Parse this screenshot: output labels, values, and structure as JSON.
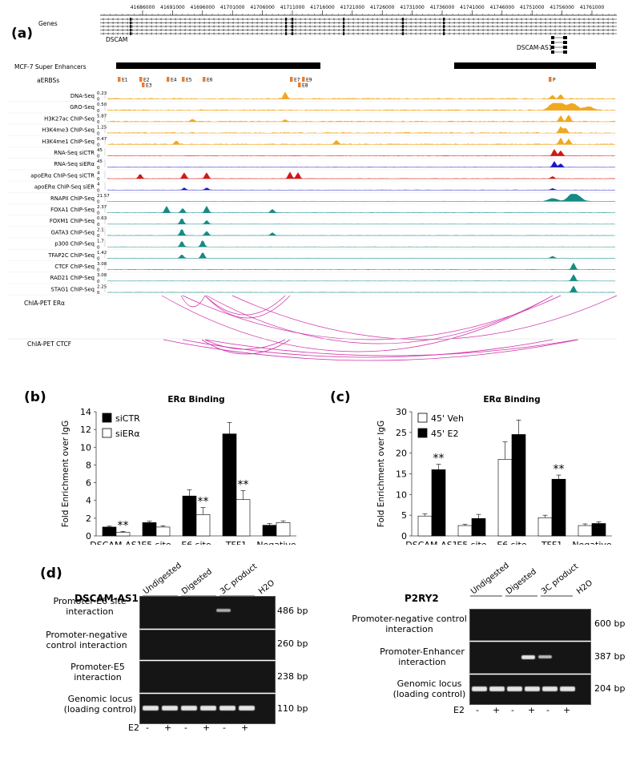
{
  "panel_a": {
    "letter": "(a)",
    "coord_ticks": [
      "41686000",
      "41691000",
      "41696000",
      "41701000",
      "41706000",
      "41711000",
      "41716000",
      "41721000",
      "41726000",
      "41731000",
      "41736000",
      "41741000",
      "41746000",
      "41751000",
      "41756000",
      "41761000"
    ],
    "tracks_header": "Genes",
    "gene_dscam": "DSCAM",
    "gene_dscam_as1": "DSCAM-AS1",
    "super_enhancers_label": "MCF-7 Super Enhancers",
    "aerbs_label": "aERBSs",
    "aerbs_sites": [
      "E1",
      "E2",
      "E3",
      "E4",
      "E5",
      "E6",
      "E7",
      "E8",
      "E9",
      "P"
    ],
    "signal_tracks": [
      {
        "name": "DNA-Seq",
        "max": "0.23",
        "min": "0",
        "color": "#f0a820"
      },
      {
        "name": "GRO-Seq",
        "max": "0.50",
        "min": "0",
        "color": "#f0a820"
      },
      {
        "name": "H3K27ac ChIP-Seq",
        "max": "5.87",
        "min": "0",
        "color": "#f0a820"
      },
      {
        "name": "H3K4me3 ChIP-Seq",
        "max": "1.25",
        "min": "0",
        "color": "#f0a820"
      },
      {
        "name": "H3K4me1 ChIP-Seq",
        "max": "0.47",
        "min": "0",
        "color": "#f0a820"
      },
      {
        "name": "RNA-Seq siCTR",
        "max": "45",
        "min": "0",
        "color": "#d01818"
      },
      {
        "name": "RNA-Seq siERα",
        "max": "45",
        "min": "0",
        "color": "#1818c8"
      },
      {
        "name": "apoERα ChIP-Seq siCTR",
        "max": "4",
        "min": "0",
        "color": "#d01818"
      },
      {
        "name": "apoERα ChIP-Seq siER",
        "max": "4",
        "min": "0",
        "color": "#1818c8"
      },
      {
        "name": "RNAPII ChIP-Seq",
        "max": "21.57",
        "min": "0",
        "color": "#168a84"
      },
      {
        "name": "FOXA1 ChIP-Seq",
        "max": "2.37",
        "min": "0",
        "color": "#168a84"
      },
      {
        "name": "FOXM1 ChIP-Seq",
        "max": "0.63",
        "min": "0",
        "color": "#168a84"
      },
      {
        "name": "GATA3 ChIP-Seq",
        "max": "2.1",
        "min": "0",
        "color": "#168a84"
      },
      {
        "name": "p300 ChIP-Seq",
        "max": "1.7",
        "min": "0",
        "color": "#168a84"
      },
      {
        "name": "TFAP2C ChIP-Seq",
        "max": "1.42",
        "min": "0",
        "color": "#168a84"
      },
      {
        "name": "CTCF ChIP-Seq",
        "max": "3.08",
        "min": "0",
        "color": "#168a84"
      },
      {
        "name": "RAD21 ChIP-Seq",
        "max": "3.08",
        "min": "0",
        "color": "#168a84"
      },
      {
        "name": "STAG1 ChIP-Seq",
        "max": "2.25",
        "min": "0",
        "color": "#168a84"
      }
    ],
    "chiapet_era_label": "ChIA-PET ERα",
    "chiapet_ctcf_label": "ChIA-PET CTCF"
  },
  "chart_data": [
    {
      "panel": "(b)",
      "type": "bar",
      "title": "ERα Binding",
      "ylabel": "Fold Enrichment over IgG",
      "ylim": [
        0,
        14
      ],
      "yticks": [
        "0",
        "2",
        "4",
        "6",
        "8",
        "10",
        "12",
        "14"
      ],
      "categories": [
        [
          "DSCAM-AS1",
          "promoter"
        ],
        [
          "E5 site"
        ],
        [
          "E6 site"
        ],
        [
          "TFF1",
          "promoter"
        ],
        [
          "Negative",
          "Control"
        ]
      ],
      "series": [
        {
          "name": "siCTR",
          "fill": "#000000",
          "values": [
            1.0,
            1.5,
            4.5,
            11.5,
            1.2
          ],
          "errors": [
            0.1,
            0.15,
            0.7,
            1.3,
            0.2
          ]
        },
        {
          "name": "siERα",
          "fill": "#ffffff",
          "values": [
            0.4,
            1.0,
            2.4,
            4.1,
            1.5
          ],
          "errors": [
            0.1,
            0.15,
            0.8,
            1.0,
            0.2
          ]
        }
      ],
      "significance": [
        {
          "category": 0,
          "label": "**"
        },
        {
          "category": 2,
          "label": "**"
        },
        {
          "category": 3,
          "label": "**"
        }
      ]
    },
    {
      "panel": "(c)",
      "type": "bar",
      "title": "ERα Binding",
      "ylabel": "Fold Enrichment over IgG",
      "ylim": [
        0,
        30
      ],
      "yticks": [
        "0",
        "5",
        "10",
        "15",
        "20",
        "25",
        "30"
      ],
      "categories": [
        [
          "DSCAM-AS1",
          "promoter"
        ],
        [
          "E5 site"
        ],
        [
          "E6 site"
        ],
        [
          "TFF1",
          "promoter"
        ],
        [
          "Negative",
          "Control"
        ]
      ],
      "series": [
        {
          "name": "45' Veh",
          "fill": "#ffffff",
          "values": [
            4.8,
            2.5,
            18.5,
            4.4,
            2.5
          ],
          "errors": [
            0.5,
            0.3,
            4.2,
            0.6,
            0.4
          ]
        },
        {
          "name": "45' E2",
          "fill": "#000000",
          "values": [
            16.0,
            4.2,
            24.5,
            13.7,
            3.0
          ],
          "errors": [
            1.3,
            1.0,
            3.5,
            1.0,
            0.4
          ]
        }
      ],
      "significance": [
        {
          "category": 0,
          "label": "**"
        },
        {
          "category": 3,
          "label": "**"
        }
      ]
    }
  ],
  "panel_d": {
    "letter": "(d)",
    "left": {
      "title": "DSCAM-AS1",
      "lane_groups": [
        "Undigested",
        "Digested",
        "3C product",
        "H2O"
      ],
      "rows": [
        {
          "label": "Promoter-E6 site interaction",
          "size": "486 bp"
        },
        {
          "label": "Promoter-negative control interaction",
          "size": "260 bp"
        },
        {
          "label": "Promoter-E5 interaction",
          "size": "238 bp"
        },
        {
          "label": "Genomic locus (loading control)",
          "size": "110 bp"
        }
      ],
      "e2_label": "E2",
      "e2_marks": [
        "-",
        "+",
        "-",
        "+",
        "-",
        "+"
      ]
    },
    "right": {
      "title": "P2RY2",
      "lane_groups": [
        "Undigested",
        "Digested",
        "3C product",
        "H2O"
      ],
      "rows": [
        {
          "label": "Promoter-negative control interaction",
          "size": "600 bp"
        },
        {
          "label": "Promoter-Enhancer interaction",
          "size": "387 bp"
        },
        {
          "label": "Genomic locus (loading control)",
          "size": "204 bp"
        }
      ],
      "e2_label": "E2",
      "e2_marks": [
        "-",
        "+",
        "-",
        "+",
        "-",
        "+"
      ]
    }
  }
}
